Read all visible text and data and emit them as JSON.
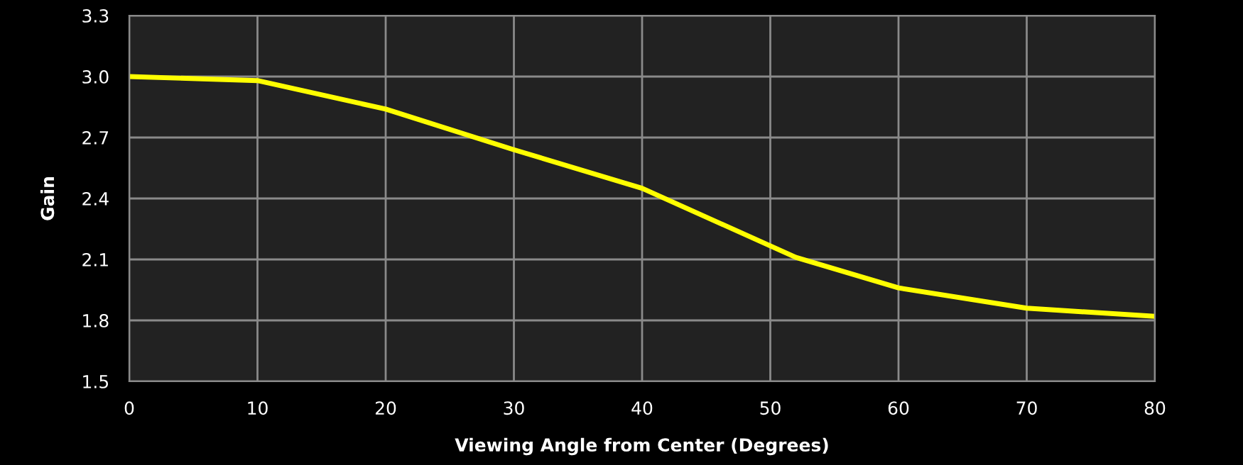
{
  "chart_data": {
    "type": "line",
    "xlabel": "Viewing Angle from Center (Degrees)",
    "ylabel": "Gain",
    "x": [
      0,
      10,
      20,
      30,
      40,
      52,
      60,
      70,
      80
    ],
    "series": [
      {
        "color": "#ffff00",
        "values": [
          3.0,
          2.98,
          2.84,
          2.64,
          2.45,
          2.11,
          1.96,
          1.86,
          1.82
        ]
      }
    ],
    "xlim": [
      0,
      80
    ],
    "xticks": [
      0,
      10,
      20,
      30,
      40,
      50,
      60,
      70,
      80
    ],
    "ylim": [
      1.5,
      3.3
    ],
    "yticks": [
      {
        "value": 1.5,
        "label": "1.5"
      },
      {
        "value": 1.8,
        "label": "1.8"
      },
      {
        "value": 2.1,
        "label": "2.1"
      },
      {
        "value": 2.4,
        "label": "2.4"
      },
      {
        "value": 2.7,
        "label": "2.7"
      },
      {
        "value": 3.0,
        "label": "3.0"
      },
      {
        "value": 3.3,
        "label": "3.3"
      }
    ],
    "grid": true,
    "marker": "none",
    "line_style": "solid"
  }
}
